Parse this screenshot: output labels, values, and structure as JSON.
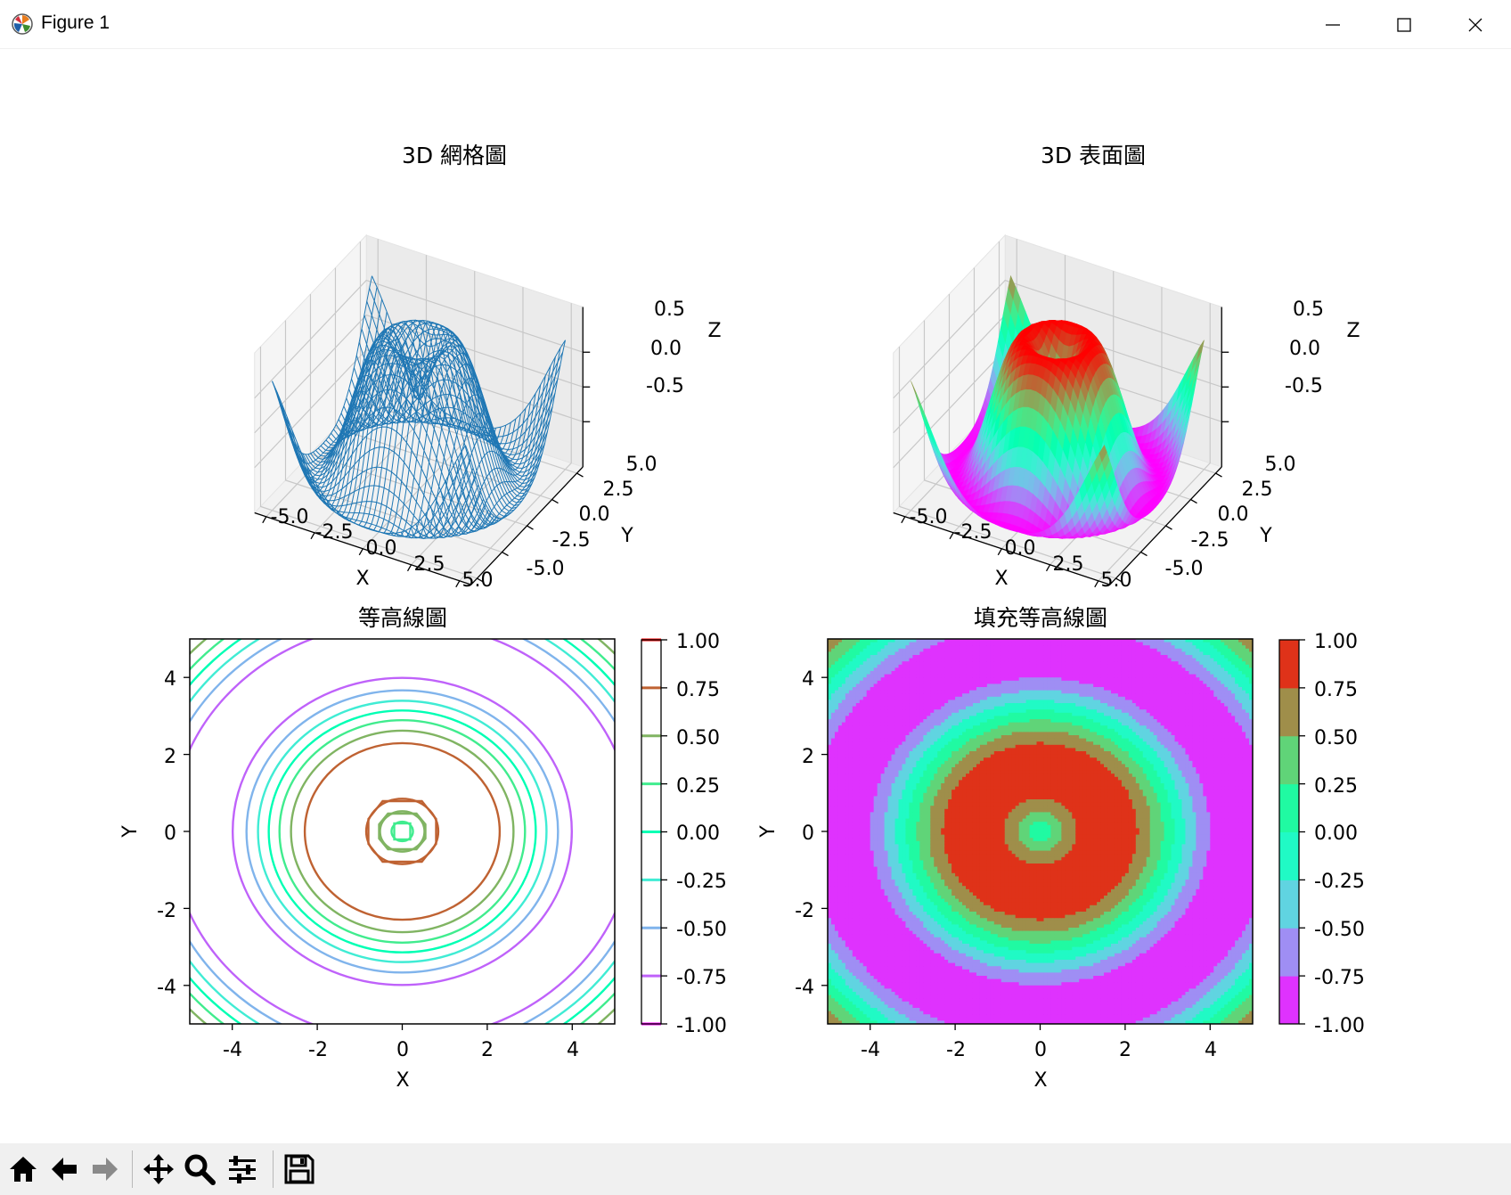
{
  "window": {
    "title": "Figure 1"
  },
  "colors": {
    "wire": "#1f77b4",
    "axis": "#000000",
    "pane": "#f2f2f2",
    "grid": "#c8c8c8"
  },
  "toolbar": {
    "icons": [
      "home-icon",
      "back-icon",
      "forward-icon",
      "pan-icon",
      "zoom-icon",
      "configure-icon",
      "save-icon"
    ]
  },
  "chart_data": [
    {
      "type": "3d-wireframe",
      "title": "3D 網格圖",
      "xlabel": "X",
      "ylabel": "Y",
      "zlabel": "Z",
      "x_ticks": [
        "-5.0",
        "-2.5",
        "0.0",
        "2.5",
        "5.0"
      ],
      "y_ticks": [
        "-5.0",
        "-2.5",
        "0.0",
        "2.5",
        "5.0"
      ],
      "z_ticks": [
        "0.5",
        "0.0",
        "-0.5"
      ],
      "function": "z = sin(sqrt(x^2 + y^2))",
      "x_range": [
        -5,
        5
      ],
      "y_range": [
        -5,
        5
      ],
      "z_range": [
        -1,
        1
      ]
    },
    {
      "type": "3d-surface",
      "title": "3D 表面圖",
      "xlabel": "X",
      "ylabel": "Y",
      "zlabel": "Z",
      "x_ticks": [
        "-5.0",
        "-2.5",
        "0.0",
        "2.5",
        "5.0"
      ],
      "y_ticks": [
        "-5.0",
        "-2.5",
        "0.0",
        "2.5",
        "5.0"
      ],
      "z_ticks": [
        "0.5",
        "0.0",
        "-0.5"
      ],
      "colormap": "rainbow",
      "function": "z = sin(sqrt(x^2 + y^2))",
      "x_range": [
        -5,
        5
      ],
      "y_range": [
        -5,
        5
      ],
      "z_range": [
        -1,
        1
      ]
    },
    {
      "type": "contour",
      "title": "等高線圖",
      "xlabel": "X",
      "ylabel": "Y",
      "x_ticks": [
        "-4",
        "-2",
        "0",
        "2",
        "4"
      ],
      "y_ticks": [
        "4",
        "2",
        "0",
        "-2",
        "-4"
      ],
      "levels": [
        -1.0,
        -0.75,
        -0.5,
        -0.25,
        0.0,
        0.25,
        0.5,
        0.75,
        1.0
      ],
      "colorbar_ticks": [
        "1.00",
        "0.75",
        "0.50",
        "0.25",
        "0.00",
        "-0.25",
        "-0.50",
        "-0.75",
        "-1.00"
      ],
      "colormap": "rainbow",
      "xlim": [
        -5,
        5
      ],
      "ylim": [
        -5,
        5
      ]
    },
    {
      "type": "filled-contour",
      "title": "填充等高線圖",
      "xlabel": "X",
      "ylabel": "Y",
      "x_ticks": [
        "-4",
        "-2",
        "0",
        "2",
        "4"
      ],
      "y_ticks": [
        "4",
        "2",
        "0",
        "-2",
        "-4"
      ],
      "levels": [
        -1.0,
        -0.75,
        -0.5,
        -0.25,
        0.0,
        0.25,
        0.5,
        0.75,
        1.0
      ],
      "colorbar_ticks": [
        "1.00",
        "0.75",
        "0.50",
        "0.25",
        "0.00",
        "-0.25",
        "-0.50",
        "-0.75",
        "-1.00"
      ],
      "colormap": "rainbow",
      "xlim": [
        -5,
        5
      ],
      "ylim": [
        -5,
        5
      ]
    }
  ]
}
